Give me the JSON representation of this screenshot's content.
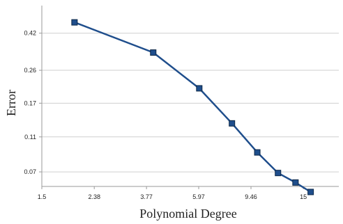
{
  "chart_data": {
    "type": "line",
    "title": "",
    "xlabel": "Polynomial Degree",
    "ylabel": "Error",
    "x_scale": "log",
    "y_scale": "log",
    "x_ticks": [
      "1.5",
      "2.38",
      "3.77",
      "5.97",
      "9.46",
      "15"
    ],
    "y_ticks": [
      "0.07",
      "0.11",
      "0.17",
      "0.26",
      "0.42"
    ],
    "xlim": [
      1.5,
      20.5
    ],
    "ylim": [
      0.058,
      0.6
    ],
    "grid": "horizontal",
    "legend": "none",
    "series": [
      {
        "color": "#1f4e8c",
        "marker": "square",
        "x": [
          2,
          4,
          6,
          8,
          10,
          12,
          14,
          16
        ],
        "y": [
          0.483,
          0.327,
          0.206,
          0.131,
          0.09,
          0.069,
          0.061,
          0.054
        ]
      }
    ]
  }
}
